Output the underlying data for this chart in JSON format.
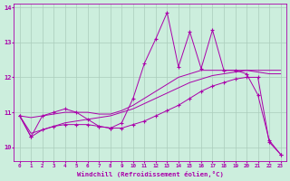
{
  "xlabel": "Windchill (Refroidissement éolien,°C)",
  "background_color": "#cceedd",
  "grid_color": "#aaccbb",
  "line_color": "#aa00aa",
  "hours": [
    0,
    1,
    2,
    3,
    4,
    5,
    6,
    7,
    8,
    9,
    10,
    11,
    12,
    13,
    14,
    15,
    16,
    17,
    18,
    19,
    20,
    21,
    22,
    23
  ],
  "line1": [
    10.9,
    10.3,
    10.9,
    11.0,
    11.1,
    11.0,
    10.8,
    10.6,
    10.55,
    10.7,
    11.4,
    12.4,
    13.1,
    13.85,
    12.3,
    13.3,
    12.25,
    13.35,
    12.2,
    12.2,
    12.1,
    11.5,
    10.2,
    9.8
  ],
  "line2": [
    10.9,
    10.4,
    10.5,
    10.6,
    10.7,
    10.75,
    10.8,
    10.85,
    10.9,
    11.0,
    11.1,
    11.25,
    11.4,
    11.55,
    11.7,
    11.85,
    11.95,
    12.05,
    12.1,
    12.15,
    12.2,
    12.2,
    12.2,
    12.2
  ],
  "line3": [
    10.9,
    10.85,
    10.9,
    10.95,
    11.0,
    11.0,
    11.0,
    10.95,
    10.95,
    11.05,
    11.2,
    11.4,
    11.6,
    11.8,
    12.0,
    12.1,
    12.2,
    12.2,
    12.2,
    12.2,
    12.2,
    12.15,
    12.1,
    12.1
  ],
  "line4": [
    10.9,
    10.3,
    10.5,
    10.6,
    10.65,
    10.65,
    10.65,
    10.6,
    10.55,
    10.55,
    10.65,
    10.75,
    10.9,
    11.05,
    11.2,
    11.4,
    11.6,
    11.75,
    11.85,
    11.95,
    12.0,
    12.0,
    10.15,
    9.8
  ],
  "ylim": [
    9.6,
    14.1
  ],
  "yticks": [
    10,
    11,
    12,
    13,
    14
  ],
  "xticks": [
    0,
    1,
    2,
    3,
    4,
    5,
    6,
    7,
    8,
    9,
    10,
    11,
    12,
    13,
    14,
    15,
    16,
    17,
    18,
    19,
    20,
    21,
    22,
    23
  ]
}
